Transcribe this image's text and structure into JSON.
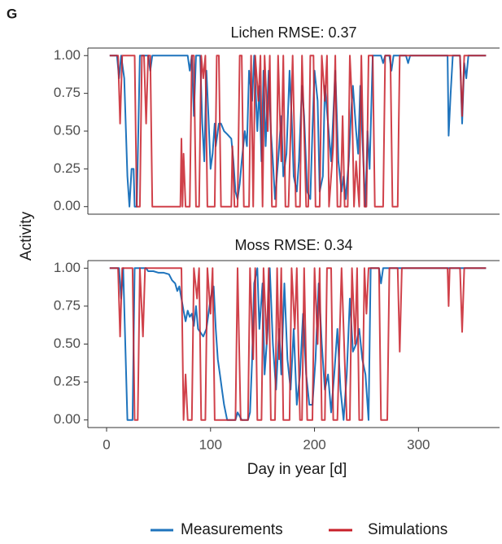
{
  "panel_label": "G",
  "y_label": "Activity",
  "x_label": "Day in year [d]",
  "chart_data": [
    {
      "type": "line",
      "title": "Lichen RMSE: 0.37",
      "xlim": [
        -18,
        378
      ],
      "ylim": [
        -0.05,
        1.05
      ],
      "yticks": [
        {
          "value": 0,
          "label": "0.00"
        },
        {
          "value": 0.25,
          "label": "0.25"
        },
        {
          "value": 0.5,
          "label": "0.50"
        },
        {
          "value": 0.75,
          "label": "0.75"
        },
        {
          "value": 1,
          "label": "1.00"
        }
      ],
      "series": [
        {
          "color": "#1f74bd",
          "x": [
            3,
            10,
            12,
            14,
            17,
            20,
            22,
            24,
            26,
            27,
            29,
            32,
            40,
            42,
            44,
            78,
            80,
            82,
            84,
            86,
            90,
            92,
            94,
            96,
            98,
            100,
            102,
            104,
            105,
            108,
            110,
            113,
            116,
            120,
            122,
            124,
            126,
            128,
            130,
            133,
            135,
            137,
            140,
            142,
            145,
            147,
            149,
            151,
            153,
            156,
            158,
            160,
            162,
            165,
            168,
            170,
            173,
            176,
            178,
            180,
            183,
            185,
            188,
            190,
            193,
            196,
            198,
            200,
            203,
            205,
            208,
            210,
            213,
            216,
            218,
            220,
            223,
            226,
            228,
            230,
            233,
            235,
            237,
            240,
            242,
            244,
            247,
            249,
            251,
            253,
            256,
            264,
            266,
            268,
            272,
            274,
            276,
            288,
            290,
            292,
            328,
            329,
            331,
            333,
            340,
            342,
            344,
            346,
            348,
            365
          ],
          "values": [
            1,
            1,
            0.85,
            1,
            0.85,
            0.2,
            0,
            0.25,
            0.25,
            0,
            0,
            1,
            1,
            0.9,
            1,
            1,
            0.9,
            1,
            0.6,
            1,
            1,
            0.55,
            0.3,
            0.9,
            0.6,
            0.25,
            0.35,
            0.55,
            0.4,
            0.55,
            0.55,
            0.5,
            0.48,
            0.45,
            0.3,
            0.1,
            0.05,
            0.15,
            0.3,
            0.5,
            0.4,
            0.9,
            0.7,
            1,
            0.5,
            0.8,
            0.3,
            0.9,
            0.4,
            0.9,
            0.5,
            0.3,
            0.05,
            0.3,
            0.6,
            0.2,
            0.35,
            0.9,
            0.6,
            0.2,
            0.1,
            0.3,
            0.8,
            0.6,
            0.1,
            0.05,
            0.5,
            0.9,
            0.7,
            0.1,
            0.2,
            0.8,
            0.55,
            0.3,
            0.6,
            0.9,
            0.3,
            0.1,
            0.2,
            0.05,
            0.3,
            0.6,
            0.8,
            0.5,
            0.35,
            0.8,
            0.3,
            0,
            0.5,
            0.25,
            1,
            1,
            0.95,
            1,
            1,
            0.9,
            1,
            1,
            0.95,
            1,
            1,
            0.47,
            0.75,
            1,
            1,
            0.55,
            0.95,
            0.85,
            1,
            1
          ]
        },
        {
          "color": "#c8202a",
          "x": [
            3,
            11,
            13,
            15,
            27,
            29,
            32,
            34,
            36,
            38,
            40,
            42,
            44,
            71,
            72,
            73,
            74,
            76,
            80,
            82,
            84,
            86,
            89,
            91,
            93,
            95,
            97,
            104,
            106,
            108,
            110,
            120,
            121,
            123,
            126,
            128,
            130,
            132,
            137,
            139,
            141,
            143,
            146,
            148,
            150,
            152,
            155,
            157,
            159,
            163,
            165,
            168,
            170,
            172,
            175,
            177,
            179,
            182,
            186,
            188,
            190,
            192,
            194,
            196,
            199,
            201,
            205,
            207,
            210,
            212,
            214,
            218,
            220,
            222,
            225,
            227,
            229,
            232,
            234,
            236,
            238,
            240,
            243,
            245,
            248,
            250,
            252,
            256,
            258,
            266,
            268,
            273,
            275,
            280,
            281,
            282,
            340,
            342,
            344,
            365
          ],
          "values": [
            1,
            1,
            0.55,
            1,
            1,
            0,
            0,
            1,
            1,
            0.55,
            1,
            1,
            0,
            0,
            0.45,
            0,
            0.35,
            0,
            0,
            1,
            1,
            0,
            0,
            1,
            0.85,
            1,
            0,
            0,
            1,
            1,
            0,
            0,
            0.4,
            0,
            0,
            1,
            1,
            0,
            0,
            1,
            0,
            1,
            0.7,
            1,
            0,
            1,
            0.5,
            1,
            0,
            0,
            1,
            0.3,
            1,
            0,
            0,
            0.5,
            1,
            0,
            0,
            1,
            0.5,
            0,
            0,
            1,
            1,
            0,
            0,
            1,
            0.7,
            1,
            0,
            0.4,
            1,
            0,
            0,
            0.6,
            0,
            0,
            1,
            0.7,
            0,
            0.3,
            0,
            1,
            0,
            0,
            1,
            1,
            0,
            0,
            1,
            1,
            0,
            0,
            0.55,
            1,
            1,
            0.6,
            1,
            1
          ]
        }
      ]
    },
    {
      "type": "line",
      "title": "Moss RMSE: 0.34",
      "xlim": [
        -18,
        378
      ],
      "ylim": [
        -0.05,
        1.05
      ],
      "xticks": [
        0,
        100,
        200,
        300
      ],
      "yticks": [
        {
          "value": 0,
          "label": "0.00"
        },
        {
          "value": 0.25,
          "label": "0.25"
        },
        {
          "value": 0.5,
          "label": "0.50"
        },
        {
          "value": 0.75,
          "label": "0.75"
        },
        {
          "value": 1,
          "label": "1.00"
        }
      ],
      "series": [
        {
          "name": "Measurements",
          "color": "#1f74bd",
          "x": [
            3,
            12,
            14,
            16,
            18,
            20,
            25,
            27,
            38,
            40,
            45,
            50,
            55,
            60,
            63,
            66,
            68,
            70,
            72,
            74,
            76,
            78,
            80,
            82,
            84,
            86,
            88,
            90,
            93,
            96,
            100,
            103,
            105,
            107,
            109,
            111,
            113,
            116,
            120,
            124,
            126,
            130,
            134,
            136,
            138,
            140,
            142,
            145,
            147,
            150,
            152,
            155,
            157,
            160,
            163,
            166,
            168,
            171,
            174,
            177,
            180,
            183,
            186,
            189,
            192,
            195,
            198,
            201,
            204,
            207,
            210,
            213,
            216,
            219,
            222,
            225,
            228,
            231,
            234,
            237,
            240,
            243,
            246,
            249,
            252,
            254,
            262,
            264,
            266,
            365
          ],
          "values": [
            1,
            1,
            0.8,
            1,
            0.5,
            0,
            0,
            1,
            1,
            0.98,
            0.98,
            0.97,
            0.97,
            0.96,
            0.92,
            0.9,
            0.85,
            0.88,
            0.8,
            0.72,
            0.65,
            0.72,
            0.68,
            0.7,
            0.62,
            0.75,
            0.6,
            0.58,
            0.55,
            0.6,
            0.8,
            0.88,
            0.6,
            0.4,
            0.3,
            0.2,
            0.1,
            0,
            0,
            0,
            0.05,
            0,
            0,
            0,
            0.05,
            0.4,
            0.9,
            1,
            0.6,
            0.9,
            0.3,
            0.6,
            1,
            0.5,
            0.2,
            0.6,
            0.3,
            0.9,
            0.4,
            0.2,
            0.6,
            0.1,
            0.3,
            0.7,
            0.3,
            0.1,
            0.1,
            0.4,
            0.9,
            0.5,
            0.2,
            0.3,
            0.05,
            0.3,
            0.6,
            0.2,
            0,
            0.3,
            0.8,
            0.45,
            0.5,
            0.6,
            0.4,
            0.3,
            0,
            1,
            1,
            0.9,
            1,
            1
          ]
        },
        {
          "name": "Simulations",
          "color": "#c8202a",
          "x": [
            3,
            11,
            13,
            15,
            25,
            27,
            30,
            32,
            35,
            37,
            72,
            74,
            76,
            78,
            82,
            84,
            87,
            89,
            91,
            95,
            97,
            100,
            102,
            104,
            122,
            124,
            126,
            129,
            136,
            138,
            141,
            143,
            145,
            149,
            151,
            154,
            156,
            158,
            162,
            164,
            166,
            168,
            170,
            176,
            178,
            181,
            183,
            186,
            188,
            190,
            193,
            198,
            200,
            203,
            205,
            207,
            210,
            212,
            216,
            218,
            222,
            224,
            226,
            229,
            231,
            234,
            236,
            239,
            241,
            243,
            246,
            248,
            250,
            252,
            262,
            264,
            270,
            272,
            280,
            282,
            284,
            328,
            329,
            330,
            340,
            342,
            344,
            365
          ],
          "values": [
            1,
            1,
            0.55,
            1,
            1,
            0,
            0,
            1,
            0.55,
            1,
            1,
            0,
            0.3,
            0,
            0,
            1,
            0.8,
            1,
            0,
            0,
            1,
            0.7,
            1,
            0,
            0,
            0,
            1,
            0,
            0,
            1,
            0.4,
            1,
            0,
            0,
            1,
            0.5,
            1,
            0,
            0,
            1,
            0.4,
            1,
            0,
            0,
            1,
            0.6,
            1,
            0,
            0,
            1,
            0,
            0,
            1,
            0.5,
            1,
            0,
            0,
            1,
            1,
            0,
            0,
            0.5,
            1,
            0.4,
            0,
            0,
            1,
            0.5,
            1,
            0,
            0,
            1,
            0.7,
            1,
            1,
            0,
            0,
            1,
            1,
            0.45,
            1,
            1,
            0.75,
            1,
            1,
            0.58,
            1,
            1
          ]
        }
      ]
    }
  ]
}
